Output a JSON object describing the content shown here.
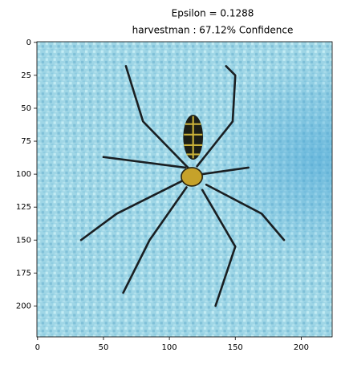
{
  "chart_data": {
    "type": "image",
    "title": [
      "Epsilon = 0.1288",
      "harvestman : 67.12% Confidence"
    ],
    "xlim": [
      -0.5,
      223.5
    ],
    "ylim": [
      223.5,
      -0.5
    ],
    "xticks": [
      0,
      50,
      100,
      150,
      200
    ],
    "yticks": [
      0,
      25,
      50,
      75,
      100,
      125,
      150,
      175,
      200
    ]
  }
}
